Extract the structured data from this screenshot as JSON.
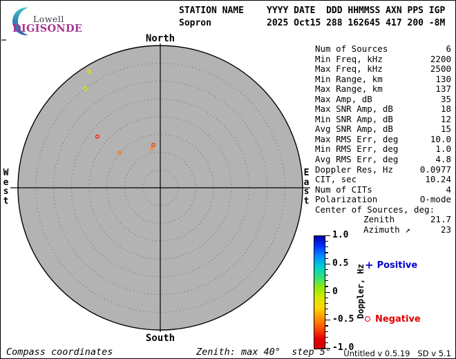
{
  "logo": {
    "lowell": "Lowell",
    "digisonde": "DIGISONDE",
    "colors": {
      "lowell": "#3a3c46",
      "digisonde": "#a5368f",
      "arc_top": "#4cc0c8",
      "arc_bottom": "#3a64ae"
    }
  },
  "header": {
    "station_label": "STATION NAME",
    "fields_label": "YYYY DATE  DDD HHMMSS AXN PPS IGP",
    "station": "Sopron",
    "fields": "2025 Oct15 288 162645 417 200 -8M"
  },
  "skymap": {
    "compass": {
      "north": "North",
      "south": "South",
      "west": "West",
      "east": "East"
    },
    "zenith_max_deg": 40,
    "zenith_step_deg": 5,
    "disk_color": "#b3b3b3",
    "ring_dot_color": "#6e6e6e",
    "axis_color": "#000000",
    "sources": [
      {
        "zenith_deg": 38.3,
        "azimuth_deg": 328.5,
        "doppler_hz": -0.35,
        "marker": "o",
        "color": "#e8e000"
      },
      {
        "zenith_deg": 34.9,
        "azimuth_deg": 323.1,
        "doppler_hz": -0.2,
        "marker": "o",
        "color": "#d4e400"
      },
      {
        "zenith_deg": 22.8,
        "azimuth_deg": 309.1,
        "doppler_hz": -0.9,
        "marker": "o",
        "color": "#e82810"
      },
      {
        "zenith_deg": 15.1,
        "azimuth_deg": 310.8,
        "doppler_hz": -0.6,
        "marker": "o",
        "color": "#ff7810"
      },
      {
        "zenith_deg": 12.2,
        "azimuth_deg": 350.8,
        "doppler_hz": -0.8,
        "marker": "o",
        "color": "#f04010"
      },
      {
        "zenith_deg": 11.3,
        "azimuth_deg": 348.1,
        "doppler_hz": -0.6,
        "marker": "o",
        "color": "#ff8020"
      }
    ]
  },
  "stats": {
    "rows": [
      {
        "label": "Num of Sources",
        "value": "6"
      },
      {
        "label": "Min Freq, kHz",
        "value": "2200"
      },
      {
        "label": "Max Freq, kHz",
        "value": "2500"
      },
      {
        "label": "Min Range, km",
        "value": "130"
      },
      {
        "label": "Max Range, km",
        "value": "137"
      },
      {
        "label": "Max Amp, dB",
        "value": "35"
      },
      {
        "label": "Max SNR Amp, dB",
        "value": "18"
      },
      {
        "label": "Min SNR Amp, dB",
        "value": "12"
      },
      {
        "label": "Avg SNR Amp, dB",
        "value": "15"
      },
      {
        "label": "Max RMS Err, deg",
        "value": "10.0"
      },
      {
        "label": "Min RMS Err, deg",
        "value": "1.0"
      },
      {
        "label": "Avg RMS Err, deg",
        "value": "4.8"
      },
      {
        "label": "Doppler Res, Hz",
        "value": "0.0977"
      },
      {
        "label": "CIT, sec",
        "value": "10.24"
      },
      {
        "label": "Num of CITs",
        "value": "4"
      },
      {
        "label": "Polarization",
        "value": "O-mode"
      },
      {
        "label": "Center of Sources, deg:",
        "value": ""
      },
      {
        "label": "Zenith",
        "value": "21.7",
        "indent": true
      },
      {
        "label": "Azimuth ↗",
        "value": "23",
        "indent": true
      }
    ]
  },
  "colorbar": {
    "title": "Doppler, Hz",
    "max": 1.0,
    "min": -1.0,
    "major_ticks": [
      "1.0",
      "0.5",
      "0",
      "-0.5",
      "-1.0"
    ],
    "minor_step": 0.1,
    "gradient": [
      "#0000a8",
      "#0033ff",
      "#0090ff",
      "#00d0d0",
      "#30e080",
      "#90e810",
      "#d8e800",
      "#ffd800",
      "#ff9800",
      "#ff5000",
      "#e80000",
      "#cc0000"
    ],
    "legend": {
      "positive_marker": "+",
      "positive_label": "Positive",
      "positive_color": "#0000cc",
      "negative_marker": "o",
      "negative_label": "Negative",
      "negative_color": "#dd0000"
    }
  },
  "footer": {
    "coords_label": "Compass coordinates",
    "zenith_info": "Zenith: max 40°  step 5°",
    "version": "Untitled v 0.5.19   SD v 5.1"
  }
}
